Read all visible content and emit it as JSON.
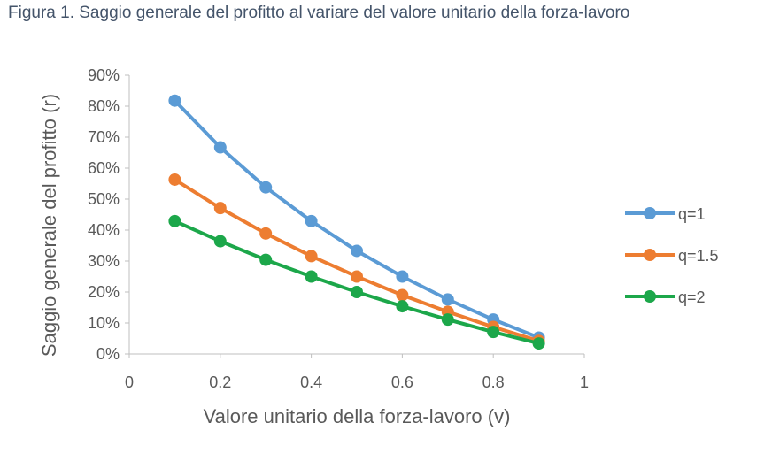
{
  "chart_data": {
    "type": "scatter",
    "title": "Figura 1. Saggio generale del profitto al variare del valore unitario della forza-lavoro",
    "xlabel": "Valore unitario della forza-lavoro (v)",
    "ylabel": "Saggio generale del profitto (r)",
    "xlim": [
      0,
      1
    ],
    "ylim": [
      0,
      0.9
    ],
    "x_ticks": [
      "0",
      "0.2",
      "0.4",
      "0.6",
      "0.8",
      "1"
    ],
    "y_ticks": [
      "0%",
      "10%",
      "20%",
      "30%",
      "40%",
      "50%",
      "60%",
      "70%",
      "80%",
      "90%"
    ],
    "grid": false,
    "legend_position": "right",
    "x": [
      0.1,
      0.2,
      0.3,
      0.4,
      0.5,
      0.6,
      0.7,
      0.8,
      0.9
    ],
    "series": [
      {
        "name": "q=1",
        "color": "#5B9BD5",
        "values": [
          0.818,
          0.667,
          0.538,
          0.429,
          0.333,
          0.25,
          0.176,
          0.111,
          0.053
        ]
      },
      {
        "name": "q=1.5",
        "color": "#ED7D31",
        "values": [
          0.563,
          0.471,
          0.389,
          0.316,
          0.25,
          0.19,
          0.136,
          0.087,
          0.042
        ]
      },
      {
        "name": "q=2",
        "color": "#1CA74A",
        "values": [
          0.429,
          0.364,
          0.304,
          0.25,
          0.2,
          0.154,
          0.111,
          0.071,
          0.034
        ]
      }
    ]
  }
}
